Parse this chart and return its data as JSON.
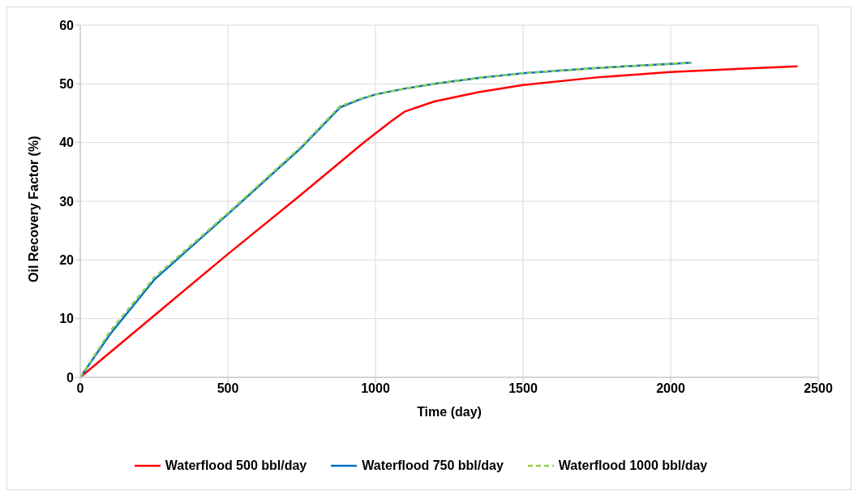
{
  "chart_data": {
    "type": "line",
    "xlabel": "Time (day)",
    "ylabel": "Oil Recovery Factor (%)",
    "xlim": [
      0,
      2500
    ],
    "xticks": [
      0,
      500,
      1000,
      1500,
      2000,
      2500
    ],
    "ylim": [
      0,
      60
    ],
    "yticks": [
      0,
      10,
      20,
      30,
      40,
      50,
      60
    ],
    "grid": true,
    "legend": "bottom",
    "marker": "none",
    "series": [
      {
        "name": "Waterflood 500 bbl/day",
        "color": "#ff0000",
        "line_style": "solid",
        "x": [
          0,
          250,
          500,
          750,
          960,
          1050,
          1100,
          1200,
          1350,
          1500,
          1750,
          2000,
          2250,
          2430
        ],
        "values": [
          0,
          10.5,
          21,
          31.2,
          40,
          43.5,
          45.3,
          47,
          48.6,
          49.8,
          51.1,
          52,
          52.6,
          53
        ]
      },
      {
        "name": "Waterflood 750 bbl/day",
        "color": "#0070c0",
        "line_style": "solid",
        "x": [
          0,
          100,
          250,
          500,
          750,
          880,
          950,
          1000,
          1100,
          1200,
          1350,
          1500,
          1750,
          2000,
          2070
        ],
        "values": [
          0,
          7.3,
          16.6,
          27.8,
          39.2,
          46,
          47.4,
          48.2,
          49.2,
          50,
          51,
          51.8,
          52.7,
          53.4,
          53.6
        ]
      },
      {
        "name": "Waterflood 1000 bbl/day",
        "color": "#92d050",
        "line_style": "dashed",
        "x": [
          0,
          100,
          250,
          500,
          750,
          880,
          950,
          1000,
          1100,
          1200,
          1350,
          1500,
          1750,
          2000,
          2070
        ],
        "values": [
          0,
          7.8,
          17,
          28,
          39.4,
          46.2,
          47.5,
          48.2,
          49.2,
          50,
          51,
          51.8,
          52.7,
          53.4,
          53.6
        ]
      }
    ]
  }
}
